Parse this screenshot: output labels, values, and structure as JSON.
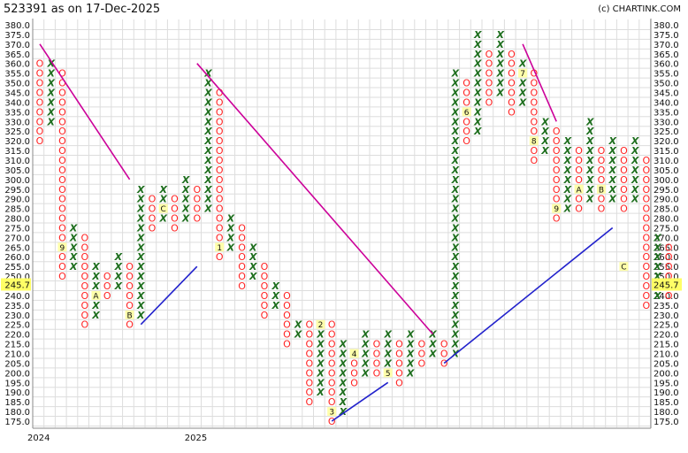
{
  "header": {
    "title": "523391 as on 17-Dec-2025",
    "credit": "(c) CHARTINK.COM"
  },
  "chart_data": {
    "type": "point-and-figure",
    "ylim": [
      175,
      380
    ],
    "box_size": 5,
    "y_ticks": [
      "175.0",
      "180.0",
      "185.0",
      "190.0",
      "195.0",
      "200.0",
      "205.0",
      "210.0",
      "215.0",
      "220.0",
      "225.0",
      "230.0",
      "235.0",
      "240.0",
      "245.0",
      "250.0",
      "255.0",
      "260.0",
      "265.0",
      "270.0",
      "275.0",
      "280.0",
      "285.0",
      "290.0",
      "295.0",
      "300.0",
      "305.0",
      "310.0",
      "315.0",
      "320.0",
      "325.0",
      "330.0",
      "335.0",
      "340.0",
      "345.0",
      "350.0",
      "355.0",
      "360.0",
      "365.0",
      "370.0",
      "375.0",
      "380.0"
    ],
    "x_labels": [
      {
        "col": 0,
        "label": "2024"
      },
      {
        "col": 14,
        "label": "2025"
      }
    ],
    "last_price": "245.7",
    "columns": [
      {
        "t": "O",
        "from": 320,
        "to": 360
      },
      {
        "t": "X",
        "from": 330,
        "to": 360
      },
      {
        "t": "O",
        "from": 250,
        "to": 355
      },
      {
        "t": "X",
        "from": 255,
        "to": 275
      },
      {
        "t": "O",
        "from": 225,
        "to": 270
      },
      {
        "t": "X",
        "from": 230,
        "to": 255
      },
      {
        "t": "O",
        "from": 240,
        "to": 250
      },
      {
        "t": "X",
        "from": 245,
        "to": 260
      },
      {
        "t": "O",
        "from": 225,
        "to": 255
      },
      {
        "t": "X",
        "from": 230,
        "to": 295
      },
      {
        "t": "O",
        "from": 275,
        "to": 290
      },
      {
        "t": "X",
        "from": 280,
        "to": 295
      },
      {
        "t": "O",
        "from": 275,
        "to": 290
      },
      {
        "t": "X",
        "from": 280,
        "to": 300
      },
      {
        "t": "O",
        "from": 280,
        "to": 295
      },
      {
        "t": "X",
        "from": 285,
        "to": 355
      },
      {
        "t": "O",
        "from": 260,
        "to": 345
      },
      {
        "t": "X",
        "from": 265,
        "to": 280
      },
      {
        "t": "O",
        "from": 245,
        "to": 275
      },
      {
        "t": "X",
        "from": 250,
        "to": 265
      },
      {
        "t": "O",
        "from": 230,
        "to": 255
      },
      {
        "t": "X",
        "from": 235,
        "to": 245
      },
      {
        "t": "O",
        "from": 215,
        "to": 240
      },
      {
        "t": "X",
        "from": 220,
        "to": 225
      },
      {
        "t": "O",
        "from": 185,
        "to": 225
      },
      {
        "t": "X",
        "from": 190,
        "to": 220
      },
      {
        "t": "O",
        "from": 175,
        "to": 225
      },
      {
        "t": "X",
        "from": 180,
        "to": 215
      },
      {
        "t": "O",
        "from": 195,
        "to": 210
      },
      {
        "t": "X",
        "from": 200,
        "to": 220
      },
      {
        "t": "O",
        "from": 200,
        "to": 215
      },
      {
        "t": "X",
        "from": 205,
        "to": 220
      },
      {
        "t": "O",
        "from": 195,
        "to": 215
      },
      {
        "t": "X",
        "from": 200,
        "to": 220
      },
      {
        "t": "O",
        "from": 205,
        "to": 215
      },
      {
        "t": "X",
        "from": 210,
        "to": 220
      },
      {
        "t": "O",
        "from": 205,
        "to": 215
      },
      {
        "t": "X",
        "from": 210,
        "to": 355
      },
      {
        "t": "O",
        "from": 320,
        "to": 350
      },
      {
        "t": "X",
        "from": 325,
        "to": 375
      },
      {
        "t": "O",
        "from": 340,
        "to": 365
      },
      {
        "t": "X",
        "from": 345,
        "to": 375
      },
      {
        "t": "O",
        "from": 335,
        "to": 365
      },
      {
        "t": "X",
        "from": 340,
        "to": 360
      },
      {
        "t": "O",
        "from": 310,
        "to": 355
      },
      {
        "t": "X",
        "from": 315,
        "to": 330
      },
      {
        "t": "O",
        "from": 280,
        "to": 325
      },
      {
        "t": "X",
        "from": 285,
        "to": 320
      },
      {
        "t": "O",
        "from": 285,
        "to": 315
      },
      {
        "t": "X",
        "from": 290,
        "to": 330
      },
      {
        "t": "O",
        "from": 285,
        "to": 315
      },
      {
        "t": "X",
        "from": 290,
        "to": 320
      },
      {
        "t": "O",
        "from": 285,
        "to": 315
      },
      {
        "t": "X",
        "from": 290,
        "to": 320
      },
      {
        "t": "O",
        "from": 235,
        "to": 310
      },
      {
        "t": "X",
        "from": 240,
        "to": 270
      },
      {
        "t": "O",
        "from": 240,
        "to": 265
      }
    ],
    "month_markers": [
      {
        "col": 2,
        "price": 265,
        "label": "9"
      },
      {
        "col": 5,
        "price": 240,
        "label": "A"
      },
      {
        "col": 8,
        "price": 230,
        "label": "B"
      },
      {
        "col": 11,
        "price": 285,
        "label": "C"
      },
      {
        "col": 16,
        "price": 265,
        "label": "1"
      },
      {
        "col": 25,
        "price": 225,
        "label": "2"
      },
      {
        "col": 26,
        "price": 180,
        "label": "3"
      },
      {
        "col": 28,
        "price": 210,
        "label": "4"
      },
      {
        "col": 31,
        "price": 200,
        "label": "5"
      },
      {
        "col": 38,
        "price": 335,
        "label": "6"
      },
      {
        "col": 43,
        "price": 355,
        "label": "7"
      },
      {
        "col": 44,
        "price": 320,
        "label": "8"
      },
      {
        "col": 46,
        "price": 285,
        "label": "9"
      },
      {
        "col": 48,
        "price": 295,
        "label": "A"
      },
      {
        "col": 50,
        "price": 295,
        "label": "B"
      },
      {
        "col": 52,
        "price": 255,
        "label": "C"
      }
    ],
    "trendlines": [
      {
        "type": "resistance",
        "from": [
          0,
          370
        ],
        "to": [
          8,
          300
        ]
      },
      {
        "type": "support",
        "from": [
          9,
          225
        ],
        "to": [
          14,
          255
        ]
      },
      {
        "type": "resistance",
        "from": [
          14,
          360
        ],
        "to": [
          35,
          220
        ]
      },
      {
        "type": "support",
        "from": [
          26,
          175
        ],
        "to": [
          31,
          195
        ]
      },
      {
        "type": "support",
        "from": [
          36,
          205
        ],
        "to": [
          51,
          275
        ]
      },
      {
        "type": "resistance",
        "from": [
          43,
          370
        ],
        "to": [
          46,
          330
        ]
      }
    ],
    "colors": {
      "x": "#1e6e1e",
      "o": "#ff2222",
      "resistance": "#cc0099",
      "support": "#2222cc",
      "grid": "#dddddd",
      "marker_bg": "#ffffaa",
      "last_price_bg": "#ffff66"
    }
  }
}
